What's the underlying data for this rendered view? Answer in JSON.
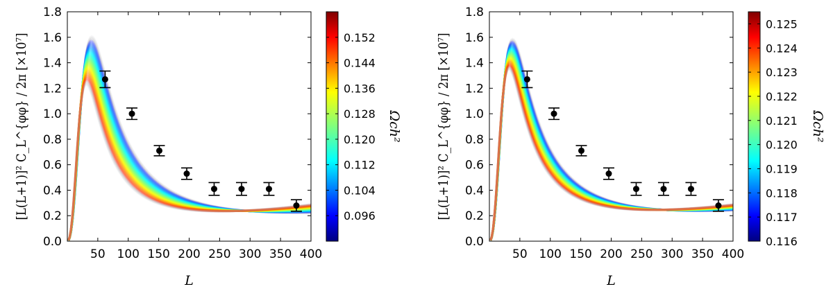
{
  "chart_data": [
    {
      "type": "line",
      "panel": "left",
      "xlabel": "L",
      "ylabel": "[L(L+1)]² C_L^{φφ} / 2π [×10⁷]",
      "xlim": [
        0,
        400
      ],
      "ylim": [
        0.0,
        1.8
      ],
      "xticks": [
        50,
        100,
        150,
        200,
        250,
        300,
        350,
        400
      ],
      "yticks": [
        "0.0",
        "0.2",
        "0.4",
        "0.6",
        "0.8",
        "1.0",
        "1.2",
        "1.4",
        "1.6",
        "1.8"
      ],
      "grid": false,
      "colorbar": {
        "label": "Ωch²",
        "range": [
          0.088,
          0.16
        ],
        "ticks": [
          "0.096",
          "0.104",
          "0.112",
          "0.120",
          "0.128",
          "0.136",
          "0.144",
          "0.152"
        ]
      },
      "curve_band": {
        "parameter_range": [
          0.09,
          0.158
        ],
        "peak_L_range": [
          31,
          40
        ],
        "peak_value_range": [
          1.22,
          1.6
        ],
        "value_at_400_range": [
          0.22,
          0.29
        ]
      },
      "data_points": {
        "x": [
          62,
          106,
          151,
          196,
          241,
          286,
          331,
          376
        ],
        "y": [
          1.27,
          1.0,
          0.71,
          0.53,
          0.41,
          0.41,
          0.41,
          0.28
        ],
        "yerr": [
          0.065,
          0.045,
          0.04,
          0.045,
          0.05,
          0.05,
          0.05,
          0.045
        ]
      }
    },
    {
      "type": "line",
      "panel": "right",
      "xlabel": "L",
      "ylabel": "[L(L+1)]² C_L^{φφ} / 2π [×10⁷]",
      "xlim": [
        0,
        400
      ],
      "ylim": [
        0.0,
        1.8
      ],
      "xticks": [
        50,
        100,
        150,
        200,
        250,
        300,
        350,
        400
      ],
      "yticks": [
        "0.0",
        "0.2",
        "0.4",
        "0.6",
        "0.8",
        "1.0",
        "1.2",
        "1.4",
        "1.6",
        "1.8"
      ],
      "grid": false,
      "colorbar": {
        "label": "Ωch²",
        "range": [
          0.116,
          0.1255
        ],
        "ticks": [
          "0.116",
          "0.117",
          "0.118",
          "0.119",
          "0.120",
          "0.121",
          "0.122",
          "0.123",
          "0.124",
          "0.125"
        ]
      },
      "curve_band": {
        "parameter_range": [
          0.1162,
          0.1253
        ],
        "peak_L_range": [
          32,
          38
        ],
        "peak_value_range": [
          1.34,
          1.58
        ],
        "value_at_400_range": [
          0.24,
          0.29
        ]
      },
      "data_points": {
        "x": [
          62,
          106,
          151,
          196,
          241,
          286,
          331,
          376
        ],
        "y": [
          1.27,
          1.0,
          0.71,
          0.53,
          0.41,
          0.41,
          0.41,
          0.28
        ],
        "yerr": [
          0.065,
          0.045,
          0.04,
          0.045,
          0.05,
          0.05,
          0.05,
          0.045
        ]
      }
    }
  ]
}
